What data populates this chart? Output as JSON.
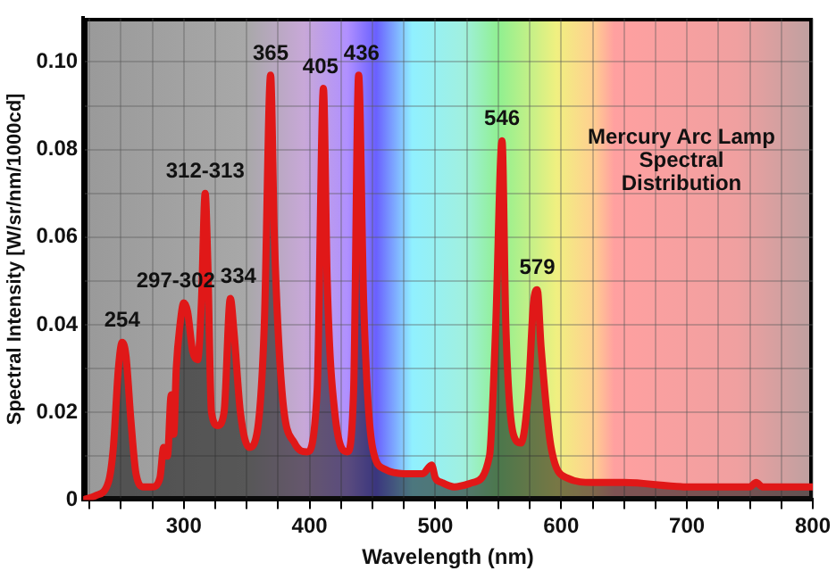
{
  "chart_data": {
    "type": "area",
    "xlabel": "Wavelength (nm)",
    "ylabel": "Spectral Intensity [W/sr/nm/1000cd]",
    "xlim": [
      220,
      800
    ],
    "xticks": [
      {
        "value": 225,
        "label": null
      },
      {
        "value": 250,
        "label": null
      },
      {
        "value": 275,
        "label": null
      },
      300,
      {
        "value": 325,
        "label": null
      },
      {
        "value": 350,
        "label": null
      },
      {
        "value": 375,
        "label": null
      },
      400,
      {
        "value": 425,
        "label": null
      },
      {
        "value": 450,
        "label": null
      },
      {
        "value": 475,
        "label": null
      },
      500,
      {
        "value": 525,
        "label": null
      },
      {
        "value": 550,
        "label": null
      },
      {
        "value": 575,
        "label": null
      },
      600,
      {
        "value": 625,
        "label": null
      },
      {
        "value": 650,
        "label": null
      },
      {
        "value": 675,
        "label": null
      },
      700,
      {
        "value": 725,
        "label": null
      },
      {
        "value": 750,
        "label": null
      },
      {
        "value": 775,
        "label": null
      },
      800
    ],
    "ylim": [
      0,
      0.11
    ],
    "yticks": [
      0,
      {
        "value": 0.01,
        "label": null
      },
      0.02,
      {
        "value": 0.03,
        "label": null
      },
      0.04,
      {
        "value": 0.05,
        "label": null
      },
      0.06,
      {
        "value": 0.07,
        "label": null
      },
      0.08,
      {
        "value": 0.09,
        "label": null
      },
      {
        "value": 0.1,
        "label": "0.10"
      }
    ],
    "grid": true,
    "legend": false,
    "marker": "none",
    "line_style": "solid",
    "series": [
      {
        "color": "#e01818",
        "x": [
          220,
          230,
          240,
          244,
          248,
          251,
          254,
          258,
          262,
          268,
          275,
          281,
          284,
          287,
          290,
          292,
          294,
          297,
          300,
          303,
          307,
          311,
          314,
          317,
          319,
          322,
          327,
          332,
          337,
          340,
          345,
          352,
          358,
          364,
          369,
          372,
          378,
          388,
          398,
          406,
          411,
          414,
          420,
          430,
          435,
          439,
          443,
          450,
          460,
          475,
          490,
          497,
          500,
          505,
          515,
          530,
          543,
          548,
          553,
          556,
          562,
          568,
          574,
          578,
          581,
          584,
          592,
          605,
          625,
          650,
          700,
          750,
          755,
          760,
          800
        ],
        "values": [
          0,
          0.001,
          0.004,
          0.012,
          0.03,
          0.036,
          0.033,
          0.018,
          0.006,
          0.003,
          0.003,
          0.005,
          0.012,
          0.01,
          0.024,
          0.015,
          0.03,
          0.04,
          0.045,
          0.043,
          0.034,
          0.032,
          0.045,
          0.07,
          0.055,
          0.02,
          0.017,
          0.02,
          0.046,
          0.038,
          0.02,
          0.012,
          0.015,
          0.04,
          0.097,
          0.06,
          0.025,
          0.013,
          0.011,
          0.025,
          0.094,
          0.05,
          0.02,
          0.011,
          0.025,
          0.097,
          0.045,
          0.012,
          0.007,
          0.006,
          0.006,
          0.008,
          0.005,
          0.004,
          0.003,
          0.004,
          0.01,
          0.04,
          0.082,
          0.04,
          0.015,
          0.013,
          0.025,
          0.045,
          0.048,
          0.035,
          0.012,
          0.005,
          0.004,
          0.004,
          0.003,
          0.003,
          0.004,
          0.003,
          0.003
        ]
      }
    ],
    "annotations": [
      {
        "text": "254",
        "x": 251,
        "y": 0.036
      },
      {
        "text": "297-302",
        "x": 300,
        "y": 0.045
      },
      {
        "text": "312-313",
        "x": 317,
        "y": 0.07
      },
      {
        "text": "334",
        "x": 337,
        "y": 0.046
      },
      {
        "text": "365",
        "x": 369,
        "y": 0.097
      },
      {
        "text": "405",
        "x": 411,
        "y": 0.094
      },
      {
        "text": "436",
        "x": 439,
        "y": 0.097
      },
      {
        "text": "546",
        "x": 553,
        "y": 0.082
      },
      {
        "text": "579",
        "x": 581,
        "y": 0.048
      },
      "Mercury Arc Lamp\nSpectral\nDistribution"
    ]
  }
}
